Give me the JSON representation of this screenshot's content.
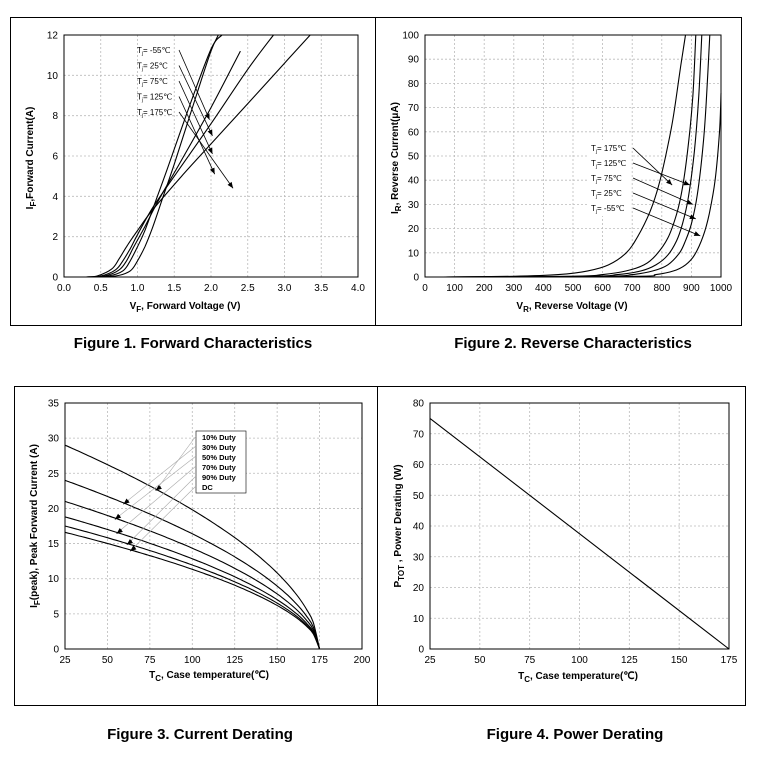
{
  "figures": [
    {
      "caption": "Figure 1. Forward Characteristics"
    },
    {
      "caption": "Figure 2. Reverse Characteristics"
    },
    {
      "caption": "Figure 3. Current Derating"
    },
    {
      "caption": "Figure 4. Power Derating"
    }
  ],
  "chart_data": [
    {
      "type": "line",
      "title": "",
      "xlabel": "VF, Forward Voltage (V)",
      "xlabel_main": "V",
      "xlabel_sub": "F",
      "xlabel_rest": ", Forward Voltage (V)",
      "ylabel": "IF,Forward Current(A)",
      "ylabel_main": "I",
      "ylabel_sub": "F",
      "ylabel_rest": ",Forward Current(A)",
      "xlim": [
        0,
        4
      ],
      "ylim": [
        0,
        12
      ],
      "xticks": [
        0,
        0.5,
        1,
        1.5,
        2,
        2.5,
        3,
        3.5,
        4
      ],
      "xtick_labels": [
        "0.0",
        "0.5",
        "1.0",
        "1.5",
        "2.0",
        "2.5",
        "3.0",
        "3.5",
        "4.0"
      ],
      "yticks": [
        0,
        2,
        4,
        6,
        8,
        10,
        12
      ],
      "ytick_labels": [
        "0",
        "2",
        "4",
        "6",
        "8",
        "10",
        "12"
      ],
      "grid": true,
      "legend_position": "top-left",
      "series": [
        {
          "name": "Tj= -55℃",
          "x": [
            0.3,
            0.7,
            0.9,
            1.0,
            1.1,
            1.2,
            1.35,
            1.5,
            1.8,
            2.0,
            2.1
          ],
          "y": [
            0,
            0.05,
            0.3,
            0.8,
            1.5,
            2.4,
            4.0,
            5.6,
            9.0,
            11.2,
            12
          ]
        },
        {
          "name": "Tj= 25℃",
          "x": [
            0.3,
            0.6,
            0.8,
            0.9,
            1.0,
            1.1,
            1.25,
            1.4,
            1.7,
            2.0,
            2.15
          ],
          "y": [
            0,
            0.05,
            0.3,
            0.8,
            1.5,
            2.3,
            3.8,
            5.3,
            8.4,
            11.3,
            12
          ]
        },
        {
          "name": "Tj= 75℃",
          "x": [
            0.3,
            0.55,
            0.75,
            0.85,
            0.95,
            1.1,
            1.3,
            1.6,
            2.0,
            2.4
          ],
          "y": [
            0,
            0.05,
            0.35,
            0.8,
            1.5,
            2.5,
            3.9,
            5.8,
            8.4,
            11.2
          ]
        },
        {
          "name": "Tj= 125℃",
          "x": [
            0.3,
            0.5,
            0.7,
            0.8,
            0.9,
            1.0,
            1.2,
            1.5,
            2.0,
            2.5,
            2.85
          ],
          "y": [
            0,
            0.05,
            0.35,
            0.8,
            1.4,
            2.1,
            3.4,
            5.0,
            7.6,
            10.3,
            12
          ]
        },
        {
          "name": "Tj= 175℃",
          "x": [
            0.3,
            0.45,
            0.65,
            0.75,
            0.85,
            1.0,
            1.2,
            1.6,
            2.0,
            2.5,
            3.0,
            3.35
          ],
          "y": [
            0,
            0.05,
            0.4,
            0.9,
            1.5,
            2.3,
            3.3,
            5.0,
            6.6,
            8.6,
            10.6,
            12
          ]
        }
      ]
    },
    {
      "type": "line",
      "title": "",
      "xlabel": "VR, Reverse Voltage (V)",
      "xlabel_main": "V",
      "xlabel_sub": "R",
      "xlabel_rest": ", Reverse Voltage (V)",
      "ylabel": "IR, Reverse Current(μA)",
      "ylabel_main": "I",
      "ylabel_sub": "R",
      "ylabel_rest": ", Reverse Current(μA)",
      "xlim": [
        0,
        1000
      ],
      "ylim": [
        0,
        100
      ],
      "xticks": [
        0,
        100,
        200,
        300,
        400,
        500,
        600,
        700,
        800,
        900,
        1000
      ],
      "xtick_labels": [
        "0",
        "100",
        "200",
        "300",
        "400",
        "500",
        "600",
        "700",
        "800",
        "900",
        "1000"
      ],
      "yticks": [
        0,
        10,
        20,
        30,
        40,
        50,
        60,
        70,
        80,
        90,
        100
      ],
      "ytick_labels": [
        "0",
        "10",
        "20",
        "30",
        "40",
        "50",
        "60",
        "70",
        "80",
        "90",
        "100"
      ],
      "grid": true,
      "legend_position": "right",
      "series": [
        {
          "name": "Tj= 175℃",
          "x": [
            60,
            300,
            450,
            550,
            620,
            680,
            720,
            760,
            790,
            820,
            840,
            860,
            870,
            880
          ],
          "y": [
            0,
            0.3,
            1,
            2.5,
            5,
            10,
            17,
            27,
            38,
            54,
            67,
            84,
            92,
            100
          ]
        },
        {
          "name": "Tj= 125℃",
          "x": [
            60,
            500,
            600,
            680,
            740,
            780,
            820,
            850,
            870,
            890,
            905,
            915
          ],
          "y": [
            0,
            0.3,
            1,
            2.5,
            5,
            9,
            16,
            26,
            37,
            55,
            75,
            100
          ]
        },
        {
          "name": "Tj= 75℃",
          "x": [
            60,
            550,
            650,
            730,
            780,
            820,
            850,
            870,
            890,
            910,
            925,
            935
          ],
          "y": [
            0,
            0.3,
            1,
            2.5,
            5,
            9,
            15,
            22,
            33,
            52,
            75,
            100
          ]
        },
        {
          "name": "Tj= 25℃",
          "x": [
            60,
            600,
            700,
            770,
            820,
            860,
            880,
            900,
            920,
            940,
            950,
            962
          ],
          "y": [
            0,
            0.3,
            1,
            2.5,
            5,
            10,
            15,
            22,
            34,
            55,
            72,
            100
          ]
        },
        {
          "name": "Tj= -55℃",
          "x": [
            60,
            700,
            780,
            840,
            880,
            910,
            940,
            960,
            980,
            995,
            1000
          ],
          "y": [
            0,
            0.3,
            1,
            2.5,
            5,
            9,
            17,
            26,
            40,
            60,
            76
          ]
        }
      ]
    },
    {
      "type": "line",
      "title": "",
      "xlabel": "TC, Case temperature(℃)",
      "xlabel_main": "T",
      "xlabel_sub": "C",
      "xlabel_rest": ", Case temperature(℃)",
      "ylabel": "IF(peak), Peak Forward Current (A)",
      "ylabel_main": "I",
      "ylabel_sub": "F",
      "ylabel_rest": "(peak), Peak Forward Current (A)",
      "xlim": [
        25,
        200
      ],
      "ylim": [
        0,
        35
      ],
      "xticks": [
        25,
        50,
        75,
        100,
        125,
        150,
        175,
        200
      ],
      "xtick_labels": [
        "25",
        "50",
        "75",
        "100",
        "125",
        "150",
        "175",
        "200"
      ],
      "yticks": [
        0,
        5,
        10,
        15,
        20,
        25,
        30,
        35
      ],
      "ytick_labels": [
        "0",
        "5",
        "10",
        "15",
        "20",
        "25",
        "30",
        "35"
      ],
      "grid": true,
      "legend_position": "top-right",
      "series": [
        {
          "name": "10% Duty",
          "peak": 29.0
        },
        {
          "name": "30% Duty",
          "peak": 24.0
        },
        {
          "name": "50% Duty",
          "peak": 21.0
        },
        {
          "name": "70% Duty",
          "peak": 18.8
        },
        {
          "name": "90% Duty",
          "peak": 17.5
        },
        {
          "name": "DC",
          "peak": 16.6
        }
      ],
      "x_end": 175
    },
    {
      "type": "line",
      "title": "",
      "xlabel": "TC, Case temperature(℃)",
      "xlabel_main": "T",
      "xlabel_sub": "C",
      "xlabel_rest": ", Case temperature(℃)",
      "ylabel": "PTOT , Power Derating (W)",
      "ylabel_main": "P",
      "ylabel_sub": "TOT",
      "ylabel_rest": " , Power Derating (W)",
      "xlim": [
        25,
        175
      ],
      "ylim": [
        0,
        80
      ],
      "xticks": [
        25,
        50,
        75,
        100,
        125,
        150,
        175
      ],
      "xtick_labels": [
        "25",
        "50",
        "75",
        "100",
        "125",
        "150",
        "175"
      ],
      "yticks": [
        0,
        10,
        20,
        30,
        40,
        50,
        60,
        70,
        80
      ],
      "ytick_labels": [
        "0",
        "10",
        "20",
        "30",
        "40",
        "50",
        "60",
        "70",
        "80"
      ],
      "grid": true,
      "series": [
        {
          "x": [
            25,
            175
          ],
          "y": [
            75,
            0
          ]
        }
      ]
    }
  ]
}
